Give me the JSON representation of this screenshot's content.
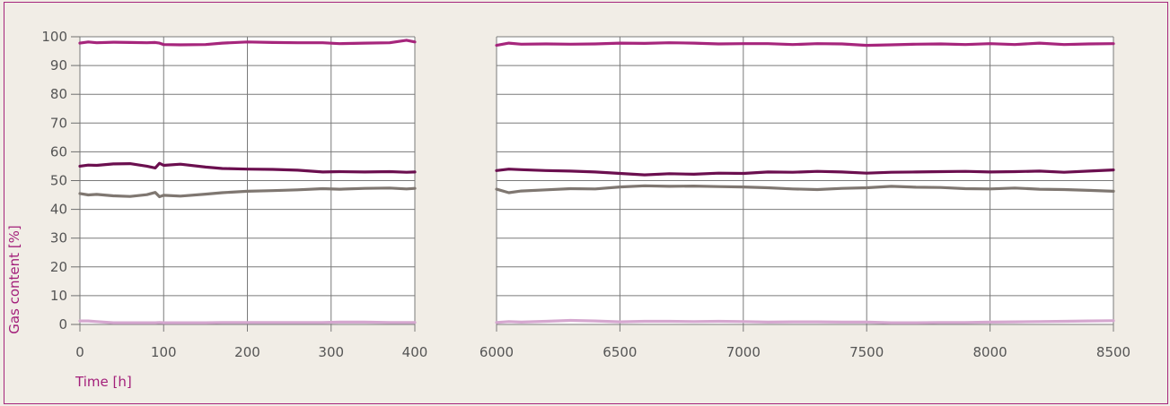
{
  "chart_data": {
    "type": "line",
    "xlabel": "Time [h]",
    "ylabel": "Gas content [%]",
    "ylim": [
      0,
      100
    ],
    "yticks": [
      "0",
      "10",
      "20",
      "30",
      "40",
      "50",
      "60",
      "70",
      "80",
      "90",
      "100"
    ],
    "grid": true,
    "legend": "none",
    "panels": [
      {
        "xlim": [
          0,
          400
        ],
        "xticks": [
          "0",
          "100",
          "200",
          "300",
          "400"
        ],
        "x": [
          0,
          10,
          20,
          40,
          60,
          80,
          90,
          95,
          100,
          120,
          150,
          170,
          200,
          230,
          260,
          290,
          310,
          340,
          370,
          390,
          400
        ],
        "series": [
          {
            "color": "#a6267c",
            "values": [
              97.8,
              98.2,
              97.9,
              98.1,
              98.0,
              97.9,
              98.0,
              97.8,
              97.3,
              97.2,
              97.3,
              97.8,
              98.2,
              98.0,
              97.9,
              97.9,
              97.6,
              97.8,
              97.9,
              98.8,
              98.2
            ]
          },
          {
            "color": "#6b0f4f",
            "values": [
              55.0,
              55.4,
              55.3,
              55.8,
              55.9,
              55.0,
              54.4,
              56.0,
              55.3,
              55.7,
              54.7,
              54.2,
              54.0,
              53.9,
              53.6,
              53.0,
              53.1,
              53.0,
              53.1,
              52.9,
              53.0
            ]
          },
          {
            "color": "#7f7771",
            "values": [
              45.5,
              45.0,
              45.2,
              44.7,
              44.5,
              45.1,
              45.9,
              44.4,
              44.9,
              44.6,
              45.3,
              45.8,
              46.3,
              46.5,
              46.8,
              47.2,
              47.0,
              47.3,
              47.4,
              47.1,
              47.3
            ]
          },
          {
            "color": "#d5a7cf",
            "values": [
              1.2,
              1.2,
              1.0,
              0.6,
              0.6,
              0.6,
              0.6,
              0.7,
              0.6,
              0.6,
              0.6,
              0.7,
              0.7,
              0.7,
              0.7,
              0.7,
              0.8,
              0.8,
              0.7,
              0.7,
              0.7
            ]
          }
        ]
      },
      {
        "xlim": [
          6000,
          8500
        ],
        "xticks": [
          "6000",
          "6500",
          "7000",
          "7500",
          "8000",
          "8500"
        ],
        "x": [
          6000,
          6050,
          6100,
          6200,
          6300,
          6400,
          6500,
          6600,
          6700,
          6800,
          6900,
          7000,
          7100,
          7200,
          7300,
          7400,
          7500,
          7600,
          7700,
          7800,
          7900,
          8000,
          8100,
          8200,
          8300,
          8400,
          8500
        ],
        "series": [
          {
            "color": "#a6267c",
            "values": [
              97.0,
              97.8,
              97.4,
              97.5,
              97.4,
              97.5,
              97.8,
              97.7,
              97.9,
              97.8,
              97.5,
              97.6,
              97.6,
              97.3,
              97.6,
              97.5,
              97.0,
              97.2,
              97.4,
              97.5,
              97.3,
              97.6,
              97.3,
              97.8,
              97.3,
              97.5,
              97.6
            ]
          },
          {
            "color": "#6b0f4f",
            "values": [
              53.5,
              54.0,
              53.8,
              53.5,
              53.3,
              53.0,
              52.5,
              52.0,
              52.4,
              52.2,
              52.6,
              52.5,
              53.0,
              52.9,
              53.2,
              53.0,
              52.6,
              52.9,
              53.0,
              53.1,
              53.2,
              53.0,
              53.1,
              53.3,
              52.9,
              53.3,
              53.7
            ]
          },
          {
            "color": "#7f7771",
            "values": [
              47.0,
              45.8,
              46.4,
              46.8,
              47.2,
              47.1,
              47.8,
              48.2,
              48.0,
              48.1,
              47.9,
              47.8,
              47.5,
              47.1,
              46.9,
              47.3,
              47.5,
              48.0,
              47.7,
              47.6,
              47.2,
              47.1,
              47.4,
              47.0,
              46.9,
              46.6,
              46.3
            ]
          },
          {
            "color": "#d5a7cf",
            "values": [
              0.7,
              1.0,
              0.8,
              1.1,
              1.4,
              1.2,
              0.9,
              1.1,
              1.1,
              1.0,
              1.1,
              1.0,
              0.8,
              0.9,
              0.9,
              0.8,
              0.8,
              0.6,
              0.6,
              0.7,
              0.7,
              0.8,
              0.9,
              1.0,
              1.1,
              1.2,
              1.3
            ]
          }
        ]
      }
    ]
  }
}
